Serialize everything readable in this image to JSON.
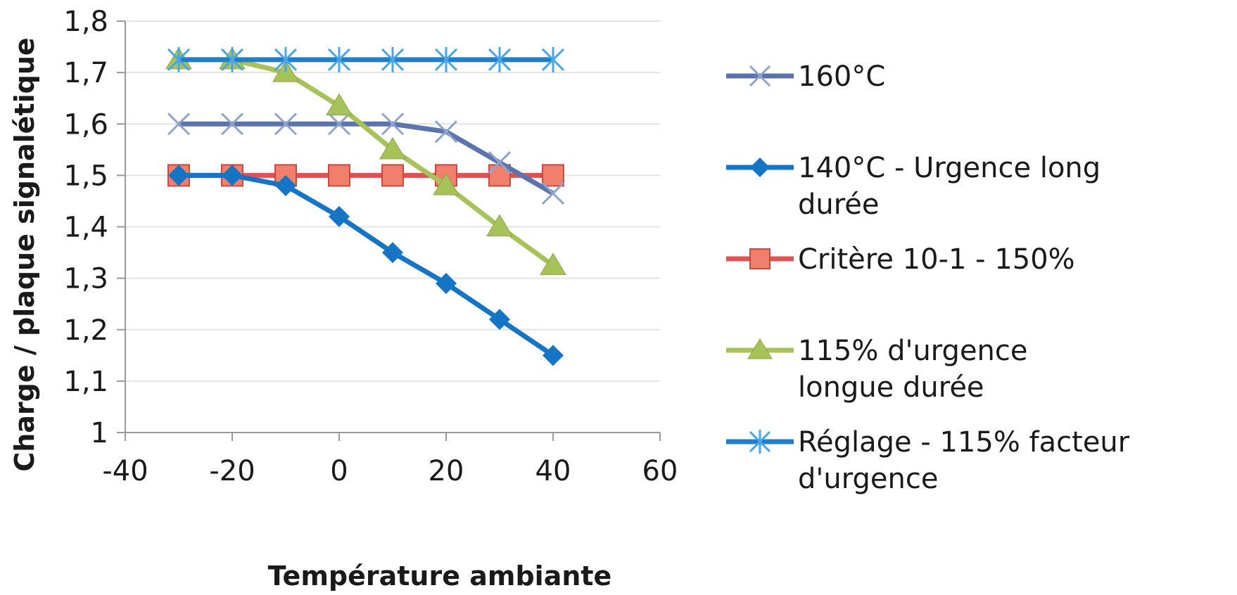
{
  "chart_data": {
    "type": "line",
    "title": "",
    "xlabel": "Température ambiante",
    "ylabel": "Charge / plaque signalétique",
    "xlim": [
      -40,
      60
    ],
    "ylim": [
      1,
      1.8
    ],
    "x_ticks": [
      "-40",
      "-20",
      "0",
      "20",
      "40",
      "60"
    ],
    "y_ticks": [
      "1",
      "1,1",
      "1,2",
      "1,3",
      "1,4",
      "1,5",
      "1,6",
      "1,7",
      "1,8"
    ],
    "grid": "horizontal",
    "legend_position": "right",
    "x": [
      -30,
      -20,
      -10,
      0,
      10,
      20,
      30,
      40
    ],
    "series": [
      {
        "name": "160°C",
        "legend_lines": [
          "160°C"
        ],
        "color": "#5b74ad",
        "marker": "x",
        "values": [
          1.6,
          1.6,
          1.6,
          1.6,
          1.6,
          1.585,
          1.525,
          1.465
        ]
      },
      {
        "name": "140°C - Urgence long durée",
        "legend_lines": [
          "140°C - Urgence long",
          "durée"
        ],
        "color": "#1574c4",
        "marker": "diamond",
        "values": [
          1.5,
          1.5,
          1.48,
          1.42,
          1.35,
          1.29,
          1.22,
          1.15
        ]
      },
      {
        "name": "Critère 10-1 - 150%",
        "legend_lines": [
          "Critère 10-1 - 150%"
        ],
        "color": "#e05252",
        "marker": "square",
        "values": [
          1.5,
          1.5,
          1.5,
          1.5,
          1.5,
          1.5,
          1.5,
          1.5
        ]
      },
      {
        "name": "115% d'urgence longue durée",
        "legend_lines": [
          "115% d'urgence",
          "longue durée"
        ],
        "color": "#a8c25a",
        "marker": "triangle",
        "values": [
          1.725,
          1.725,
          1.7,
          1.635,
          1.55,
          1.48,
          1.4,
          1.325
        ]
      },
      {
        "name": "Réglage - 115% facteur d'urgence",
        "legend_lines": [
          "Réglage - 115% facteur",
          "d'urgence"
        ],
        "color": "#1f7fcc",
        "marker": "star",
        "values": [
          1.725,
          1.725,
          1.725,
          1.725,
          1.725,
          1.725,
          1.725,
          1.725
        ]
      }
    ]
  }
}
